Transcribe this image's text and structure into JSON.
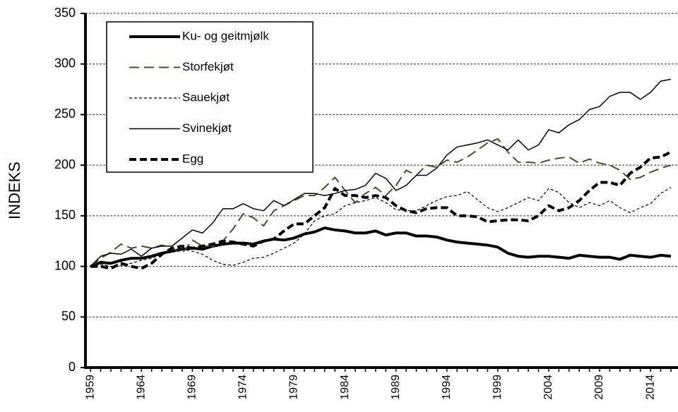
{
  "chart_data": {
    "type": "line",
    "y_label": "INDEKS",
    "x": [
      1959,
      1960,
      1961,
      1962,
      1963,
      1964,
      1965,
      1966,
      1967,
      1968,
      1969,
      1970,
      1971,
      1972,
      1973,
      1974,
      1975,
      1976,
      1977,
      1978,
      1979,
      1980,
      1981,
      1982,
      1983,
      1984,
      1985,
      1986,
      1987,
      1988,
      1989,
      1990,
      1991,
      1992,
      1993,
      1994,
      1995,
      1996,
      1997,
      1998,
      1999,
      2000,
      2001,
      2002,
      2003,
      2004,
      2005,
      2006,
      2007,
      2008,
      2009,
      2010,
      2011,
      2012,
      2013,
      2014,
      2015,
      2016
    ],
    "xlim": [
      1958.5,
      2016.7
    ],
    "xticks": [
      1959,
      1964,
      1969,
      1974,
      1979,
      1984,
      1989,
      1994,
      1999,
      2004,
      2009,
      2014
    ],
    "ylim": [
      0,
      350
    ],
    "yticks": [
      0,
      50,
      100,
      150,
      200,
      250,
      300,
      350
    ],
    "grid": true,
    "legend": "upper left",
    "series": [
      {
        "name": "Ku- og geitmjølk",
        "color": "#000000",
        "width": 4,
        "dash": "none",
        "values": [
          100,
          104,
          103,
          106,
          108,
          108,
          110,
          113,
          115,
          117,
          118,
          117,
          120,
          122,
          123,
          123,
          122,
          125,
          127,
          126,
          128,
          132,
          134,
          138,
          136,
          135,
          133,
          133,
          135,
          131,
          133,
          133,
          130,
          130,
          129,
          126,
          124,
          123,
          122,
          121,
          119,
          113,
          110,
          109,
          110,
          110,
          109,
          108,
          111,
          110,
          109,
          109,
          107,
          111,
          110,
          109,
          111,
          110
        ]
      },
      {
        "name": "Storfekjøt",
        "color": "#4d4d2a",
        "width": 2,
        "dash": "14 7",
        "values": [
          100,
          108,
          114,
          122,
          118,
          120,
          118,
          121,
          118,
          113,
          126,
          120,
          120,
          125,
          137,
          152,
          148,
          140,
          155,
          160,
          165,
          170,
          170,
          178,
          188,
          175,
          163,
          172,
          178,
          170,
          180,
          195,
          190,
          200,
          198,
          205,
          203,
          208,
          215,
          222,
          226,
          213,
          203,
          203,
          202,
          205,
          207,
          208,
          202,
          206,
          202,
          200,
          195,
          186,
          188,
          193,
          197,
          200
        ]
      },
      {
        "name": "Sauekjøt",
        "color": "#000000",
        "width": 1.2,
        "dash": "4 3",
        "values": [
          100,
          102,
          100,
          101,
          103,
          106,
          108,
          112,
          115,
          117,
          115,
          112,
          106,
          102,
          101,
          104,
          108,
          109,
          113,
          118,
          123,
          132,
          145,
          150,
          152,
          160,
          163,
          165,
          168,
          163,
          156,
          155,
          155,
          160,
          165,
          169,
          170,
          174,
          166,
          158,
          154,
          158,
          163,
          168,
          165,
          177,
          173,
          163,
          158,
          163,
          160,
          165,
          158,
          153,
          158,
          162,
          172,
          178
        ]
      },
      {
        "name": "Svinekjøt",
        "color": "#000000",
        "width": 1.5,
        "dash": "none",
        "values": [
          100,
          110,
          113,
          112,
          117,
          110,
          118,
          120,
          120,
          128,
          136,
          133,
          143,
          157,
          157,
          162,
          157,
          155,
          165,
          160,
          166,
          172,
          172,
          170,
          172,
          175,
          176,
          180,
          192,
          187,
          175,
          180,
          190,
          190,
          197,
          210,
          218,
          220,
          222,
          225,
          220,
          215,
          225,
          215,
          220,
          235,
          232,
          240,
          245,
          255,
          258,
          268,
          272,
          272,
          265,
          272,
          283,
          285
        ]
      },
      {
        "name": "Egg",
        "color": "#000000",
        "width": 4,
        "dash": "10 5",
        "values": [
          100,
          100,
          98,
          103,
          100,
          98,
          103,
          112,
          118,
          120,
          118,
          120,
          122,
          125,
          124,
          122,
          120,
          125,
          127,
          135,
          142,
          142,
          150,
          158,
          177,
          170,
          170,
          168,
          170,
          168,
          160,
          155,
          153,
          157,
          158,
          158,
          150,
          150,
          149,
          144,
          145,
          146,
          146,
          145,
          150,
          160,
          155,
          158,
          165,
          175,
          183,
          183,
          180,
          192,
          198,
          207,
          208,
          213
        ]
      }
    ]
  }
}
